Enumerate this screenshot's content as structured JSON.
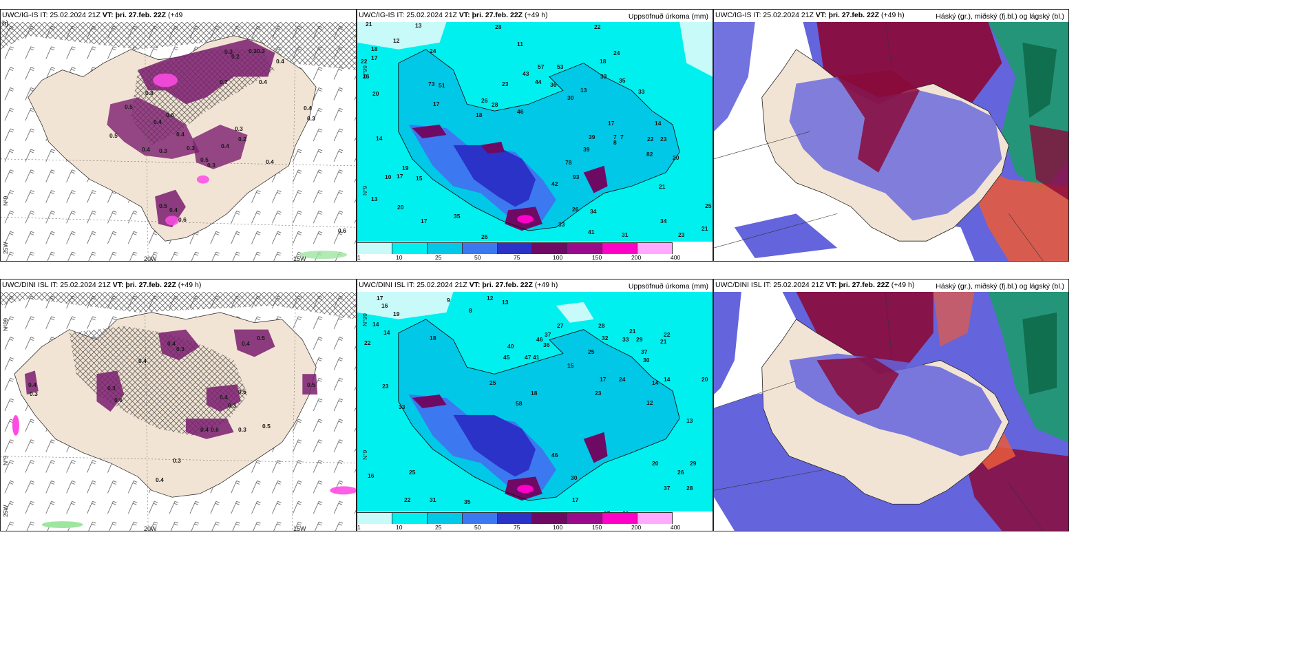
{
  "panels": {
    "top_left": {
      "title_pre": "UWC/IG-IS IT: 25.02.2024 21Z ",
      "title_bold": "VT: þri. 27.feb. 22Z",
      "title_post": " (+49",
      "title_line2": "h)",
      "lon_labels": [
        "20W",
        "15W"
      ],
      "lat_labels": [
        "N°99",
        "N°9",
        "25W"
      ],
      "max_label": "0.6"
    },
    "top_mid": {
      "title_pre": "UWC/IG-IS IT: 25.02.2024 21Z ",
      "title_bold": "VT: þri. 27.feb. 22Z",
      "title_post": " (+49 h)",
      "right": "Uppsöfnuð úrkoma (mm)",
      "lat_labels": [
        "N°99",
        "N°9"
      ]
    },
    "top_right": {
      "title_pre": "UWC/IG-IS IT: 25.02.2024 21Z ",
      "title_bold": "VT: þri. 27.feb. 22Z",
      "title_post": " (+49 h)",
      "right": "Háský (gr.), miðský (fj.bl.) og lágský (bl.)"
    },
    "bot_left": {
      "title_pre": "UWC/DINI ISL IT: 25.02.2024 21Z ",
      "title_bold": "VT: þri. 27.feb. 22Z",
      "title_post": " (+49 h)",
      "lon_labels": [
        "20W",
        "15W"
      ],
      "lat_labels": [
        "N°99",
        "N°9",
        "25W"
      ]
    },
    "bot_mid": {
      "title_pre": "UWC/DINI ISL IT: 25.02.2024 21Z ",
      "title_bold": "VT: þri. 27.feb. 22Z",
      "title_post": " (+49 h)",
      "right": "Uppsöfnuð úrkoma (mm)",
      "lat_labels": [
        "N°99",
        "N°9"
      ]
    },
    "bot_right": {
      "title_pre": "UWC/DINI ISL IT: 25.02.2024 21Z ",
      "title_bold": "VT: þri. 27.feb. 22Z",
      "title_post": " (+49 h)",
      "right": "Háský (gr.), miðský (fj.bl.) og lágský (bl.)"
    }
  },
  "precip_legend": {
    "ticks": [
      "1",
      "10",
      "25",
      "50",
      "75",
      "100",
      "150",
      "200",
      "400"
    ],
    "colors": [
      "#c8fafa",
      "#00f0f0",
      "#00c8e6",
      "#3c78f0",
      "#2a32c8",
      "#6e0a64",
      "#9a0a8c",
      "#ff00c8",
      "#ffaaff"
    ]
  },
  "colors": {
    "land": "#f2e4d4",
    "sea_precip": "#00f0f0",
    "precip_dark": "#7a1e6e",
    "precip_pink": "#ff4be6",
    "cloud_high": "#8a0a3a",
    "cloud_mid": "#6464dc",
    "cloud_low_green": "#1e9a6e",
    "cloud_orange": "#e85a3c"
  },
  "values": {
    "top_left": [
      "0.3",
      "0.2",
      "0.3",
      "0.3",
      "0.4",
      "0.8",
      "0.7",
      "0.4",
      "0.5",
      "0.4",
      "0.6",
      "0.4",
      "0.3",
      "0.4",
      "0.5",
      "0.3",
      "0.4",
      "0.3",
      "0.2",
      "0.5",
      "0.3",
      "0.4",
      "0.5",
      "0.4",
      "0.6",
      "0.4",
      "0.3"
    ],
    "top_mid": [
      "21",
      "13",
      "12",
      "18",
      "17",
      "22",
      "16",
      "20",
      "24",
      "73",
      "51",
      "17",
      "18",
      "26",
      "28",
      "23",
      "43",
      "57",
      "53",
      "44",
      "36",
      "46",
      "30",
      "22",
      "13",
      "18",
      "33",
      "35",
      "33",
      "24",
      "17",
      "14",
      "23",
      "22",
      "39",
      "39",
      "7",
      "7",
      "17",
      "14",
      "19",
      "10",
      "13",
      "15",
      "20",
      "17",
      "26",
      "35",
      "28",
      "26",
      "33",
      "41",
      "34",
      "31",
      "23",
      "21",
      "25",
      "34",
      "42",
      "78",
      "93",
      "8",
      "82",
      "20",
      "21",
      "11"
    ],
    "top_right": [],
    "bot_left": [
      "0.4",
      "0.3",
      "0.4",
      "0.5",
      "0.3",
      "0.6",
      "0.4",
      "0.3",
      "0.5",
      "0.4",
      "0.6",
      "0.3",
      "0.4",
      "0.3",
      "0.3",
      "0.5",
      "0.4",
      "0.5",
      "0.4"
    ],
    "bot_mid": [
      "17",
      "16",
      "9",
      "8",
      "12",
      "13",
      "14",
      "19",
      "14",
      "22",
      "18",
      "40",
      "47",
      "46",
      "41",
      "36",
      "45",
      "37",
      "27",
      "32",
      "33",
      "28",
      "17",
      "25",
      "23",
      "29",
      "37",
      "21",
      "30",
      "21",
      "22",
      "15",
      "23",
      "16",
      "14",
      "24",
      "12",
      "35",
      "20",
      "13",
      "33",
      "18",
      "46",
      "25",
      "58",
      "25",
      "31",
      "22",
      "20",
      "26",
      "17",
      "30",
      "37",
      "28",
      "27",
      "30",
      "29",
      "14"
    ],
    "bot_right": []
  }
}
